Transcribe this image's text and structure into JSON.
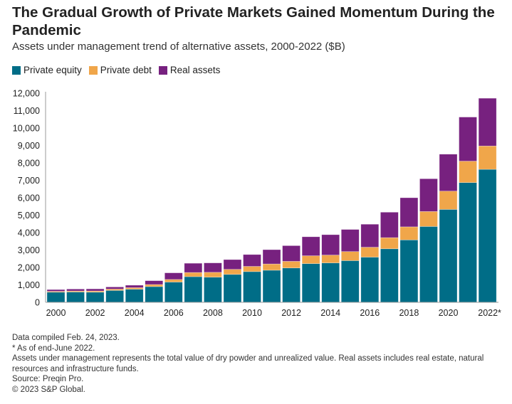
{
  "title": "The Gradual Growth of Private Markets Gained Momentum During the Pandemic",
  "subtitle": "Assets under management trend of alternative assets, 2000-2022 ($B)",
  "notes": [
    "Data compiled Feb. 24, 2023.",
    "* As of end-June 2022.",
    "Assets under management represents the total value of dry powder and unrealized value. Real assets includes real estate, natural resources and infrastructure funds.",
    "Source: Preqin Pro.",
    "© 2023 S&P Global."
  ],
  "chart_data": {
    "type": "bar",
    "stacked": true,
    "ylim": [
      0,
      12000
    ],
    "grid": false,
    "legend_position": "top-left",
    "categories": [
      "2000",
      "2001",
      "2002",
      "2003",
      "2004",
      "2005",
      "2006",
      "2007",
      "2008",
      "2009",
      "2010",
      "2011",
      "2012",
      "2013",
      "2014",
      "2015",
      "2016",
      "2017",
      "2018",
      "2019",
      "2020",
      "2021",
      "2022*"
    ],
    "x_tick_labels": [
      "2000",
      "2002",
      "2004",
      "2006",
      "2008",
      "2010",
      "2012",
      "2014",
      "2016",
      "2018",
      "2020",
      "2022*"
    ],
    "y_tick_labels": [
      "0",
      "1,000",
      "2,000",
      "3,000",
      "4,000",
      "5,000",
      "6,000",
      "7,000",
      "8,000",
      "9,000",
      "10,000",
      "11,000",
      "12,000"
    ],
    "series": [
      {
        "name": "Private equity",
        "color": "#006d87",
        "values": [
          580,
          590,
          580,
          680,
          750,
          900,
          1160,
          1470,
          1440,
          1600,
          1760,
          1840,
          1970,
          2220,
          2260,
          2390,
          2590,
          3070,
          3580,
          4350,
          5330,
          6870,
          7630
        ]
      },
      {
        "name": "Private debt",
        "color": "#f0a64a",
        "values": [
          50,
          60,
          70,
          80,
          90,
          120,
          150,
          240,
          280,
          290,
          300,
          360,
          380,
          450,
          450,
          520,
          570,
          640,
          750,
          860,
          1050,
          1230,
          1340
        ]
      },
      {
        "name": "Real assets",
        "color": "#77217f",
        "values": [
          100,
          110,
          120,
          120,
          140,
          220,
          380,
          530,
          540,
          560,
          680,
          820,
          900,
          1090,
          1170,
          1270,
          1320,
          1460,
          1670,
          1880,
          2120,
          2530,
          2740
        ]
      }
    ]
  }
}
